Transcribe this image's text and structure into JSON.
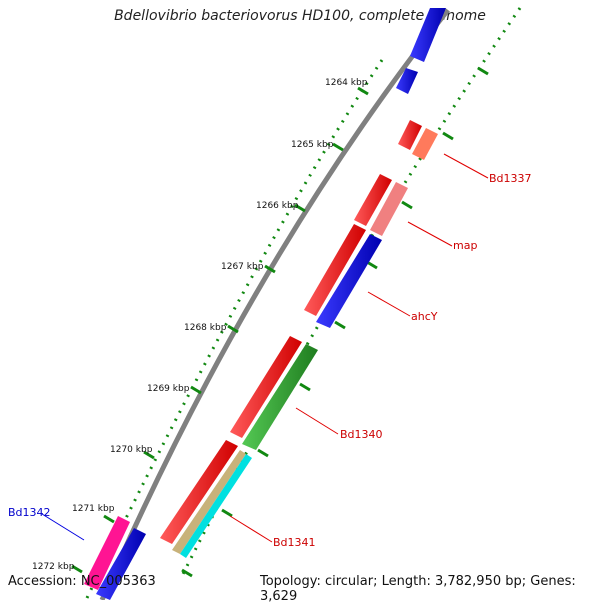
{
  "title": "Bdellovibrio bacteriovorus HD100, complete genome",
  "footer": {
    "accession": "Accession: NC_005363",
    "summary": "Topology: circular; Length: 3,782,950 bp; Genes: 3,629"
  },
  "ticks": [
    "1264 kbp",
    "1265 kbp",
    "1266 kbp",
    "1267 kbp",
    "1268 kbp",
    "1269 kbp",
    "1270 kbp",
    "1271 kbp",
    "1272 kbp"
  ],
  "genes": [
    {
      "id": "bd1337",
      "label": "Bd1337",
      "color": "#cc0000"
    },
    {
      "id": "map",
      "label": "map",
      "color": "#cc0000"
    },
    {
      "id": "ahcy",
      "label": "ahcY",
      "color": "#cc0000"
    },
    {
      "id": "bd1340",
      "label": "Bd1340",
      "color": "#cc0000"
    },
    {
      "id": "bd1341",
      "label": "Bd1341",
      "color": "#cc0000"
    },
    {
      "id": "bd1342",
      "label": "Bd1342",
      "color": "#0000cc"
    }
  ],
  "colors": {
    "backbone": "#808080",
    "dots": "#118811",
    "red": "#ff0000",
    "salmon": "#ff7a5c",
    "pink": "#f08080",
    "blue": "#0000ff",
    "green": "#2fa52f",
    "tan": "#c8b27a",
    "cyan": "#00e0e0",
    "magenta": "#ff1493"
  }
}
